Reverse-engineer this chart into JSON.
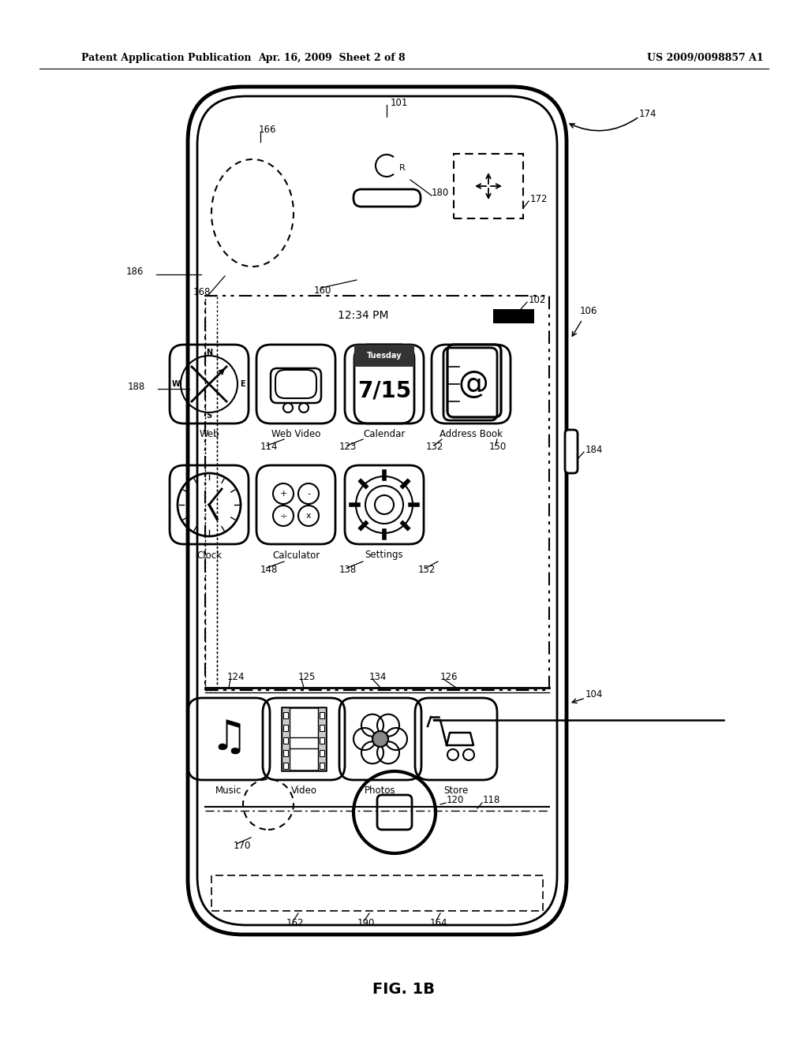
{
  "bg_color": "#ffffff",
  "header_left": "Patent Application Publication",
  "header_mid": "Apr. 16, 2009  Sheet 2 of 8",
  "header_right": "US 2009/0098857 A1",
  "fig_label": "FIG. 1B",
  "black": "#000000"
}
